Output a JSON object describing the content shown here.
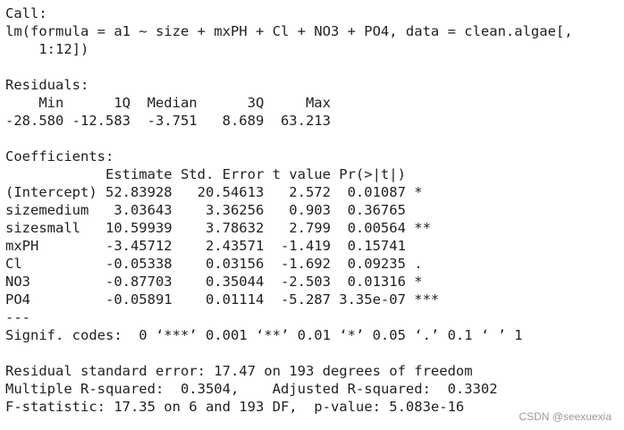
{
  "console": {
    "call_header": "Call:",
    "call_line1": "lm(formula = a1 ~ size + mxPH + Cl + NO3 + PO4, data = clean.algae[,",
    "call_line2": "    1:12])",
    "residuals_header": "Residuals:",
    "residuals_cols": "    Min      1Q  Median      3Q     Max ",
    "residuals_vals": "-28.580 -12.583  -3.751   8.689  63.213 ",
    "coefficients_header": "Coefficients:",
    "coef_cols": "            Estimate Std. Error t value Pr(>|t|)    ",
    "coef_rows": [
      "(Intercept) 52.83928   20.54613   2.572  0.01087 *  ",
      "sizemedium   3.03643    3.36256   0.903  0.36765    ",
      "sizesmall   10.59939    3.78632   2.799  0.00564 ** ",
      "mxPH        -3.45712    2.43571  -1.419  0.15741    ",
      "Cl          -0.05338    0.03156  -1.692  0.09235 .  ",
      "NO3         -0.87703    0.35044  -2.503  0.01316 *  ",
      "PO4         -0.05891    0.01114  -5.287 3.35e-07 ***"
    ],
    "separator": "---",
    "signif_codes": "Signif. codes:  0 ‘***’ 0.001 ‘**’ 0.01 ‘*’ 0.05 ‘.’ 0.1 ‘ ’ 1",
    "rse_line": "Residual standard error: 17.47 on 193 degrees of freedom",
    "r2_line": "Multiple R-squared:  0.3504,\tAdjusted R-squared:  0.3302 ",
    "f_line": "F-statistic: 17.35 on 6 and 193 DF,  p-value: 5.083e-16"
  },
  "watermark": "CSDN @seexuexia"
}
